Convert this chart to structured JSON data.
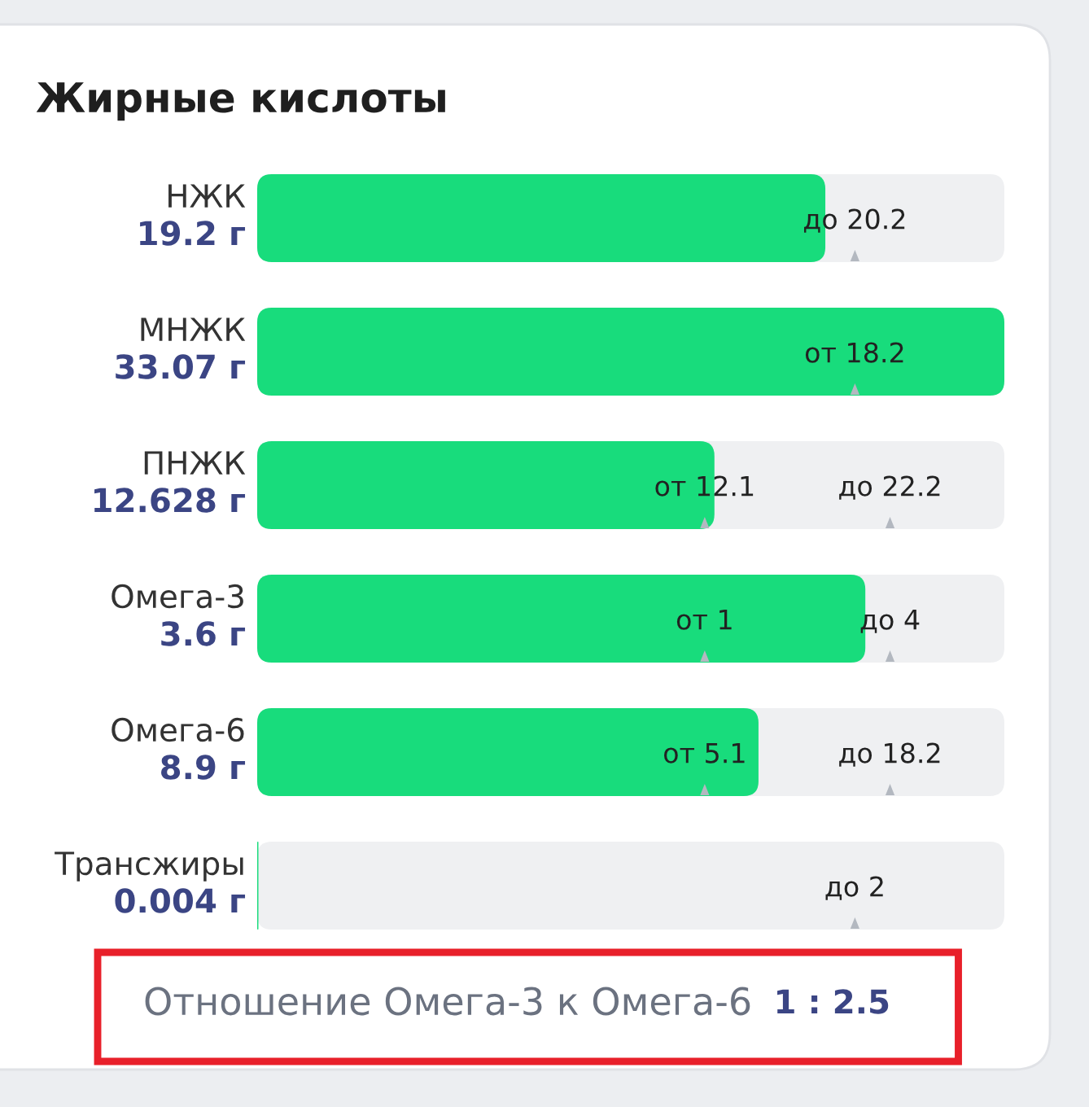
{
  "chart_data": {
    "type": "other",
    "title": "Жирные кислоты",
    "categories": [
      "НЖК",
      "МНЖК",
      "ПНЖК",
      "Омега-3",
      "Омега-6",
      "Трансжиры"
    ],
    "series": [
      {
        "type": "bar",
        "color": "#18dc7c",
        "values": [
          19.2,
          33.07,
          12.628,
          3.6,
          8.9,
          0.004
        ],
        "value_labels": [
          "19.2 г",
          "33.07 г",
          "12.628 г",
          "3.6 г",
          "8.9 г",
          "0.004 г"
        ]
      },
      {
        "type": "scatter",
        "marker": "triangle",
        "values": [
          null,
          18.2,
          12.1,
          1,
          5.1,
          null
        ],
        "value_labels": [
          null,
          "от 18.2",
          "от 12.1",
          "от 1",
          "от 5.1",
          null
        ]
      },
      {
        "type": "scatter",
        "marker": "triangle",
        "values": [
          20.2,
          null,
          22.2,
          4,
          18.2,
          2
        ],
        "value_labels": [
          "до 20.2",
          null,
          "до 22.2",
          "до 4",
          "до 18.2",
          "до 2"
        ]
      }
    ],
    "annotations": [
      "Отношение Омега-3 к Омега-6",
      "1 : 2.5"
    ]
  }
}
